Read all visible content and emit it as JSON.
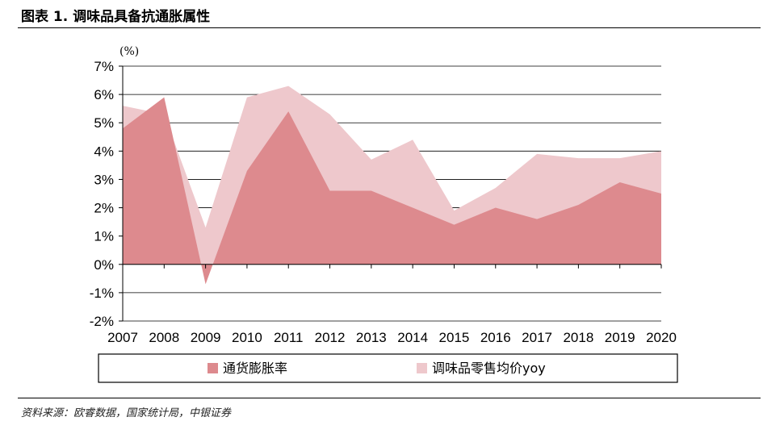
{
  "header": {
    "title": "图表 1. 调味品具备抗通胀属性"
  },
  "footer": {
    "source": "资料来源：欧睿数据，国家统计局，中银证券"
  },
  "colors": {
    "series_1": "#dd8a8e",
    "series_2": "#eec8cc",
    "grid": "#000000"
  },
  "chart_data": {
    "type": "area",
    "unit_label": "(%)",
    "x": [
      "2007",
      "2008",
      "2009",
      "2010",
      "2011",
      "2012",
      "2013",
      "2014",
      "2015",
      "2016",
      "2017",
      "2018",
      "2019",
      "2020"
    ],
    "y_ticks": [
      "-2%",
      "-1%",
      "0%",
      "1%",
      "2%",
      "3%",
      "4%",
      "5%",
      "6%",
      "7%"
    ],
    "ylim": [
      -2,
      7
    ],
    "grid": true,
    "legend_position": "bottom",
    "series": [
      {
        "name": "通货膨胀率",
        "color": "#dd8a8e",
        "values": [
          4.8,
          5.9,
          -0.7,
          3.3,
          5.4,
          2.6,
          2.6,
          2.0,
          1.4,
          2.0,
          1.6,
          2.1,
          2.9,
          2.5
        ]
      },
      {
        "name": "调味品零售均价yoy",
        "color": "#eec8cc",
        "values": [
          5.6,
          5.3,
          1.3,
          5.9,
          6.3,
          5.3,
          3.7,
          4.4,
          1.9,
          2.7,
          3.9,
          3.75,
          3.75,
          4.0
        ]
      }
    ]
  }
}
